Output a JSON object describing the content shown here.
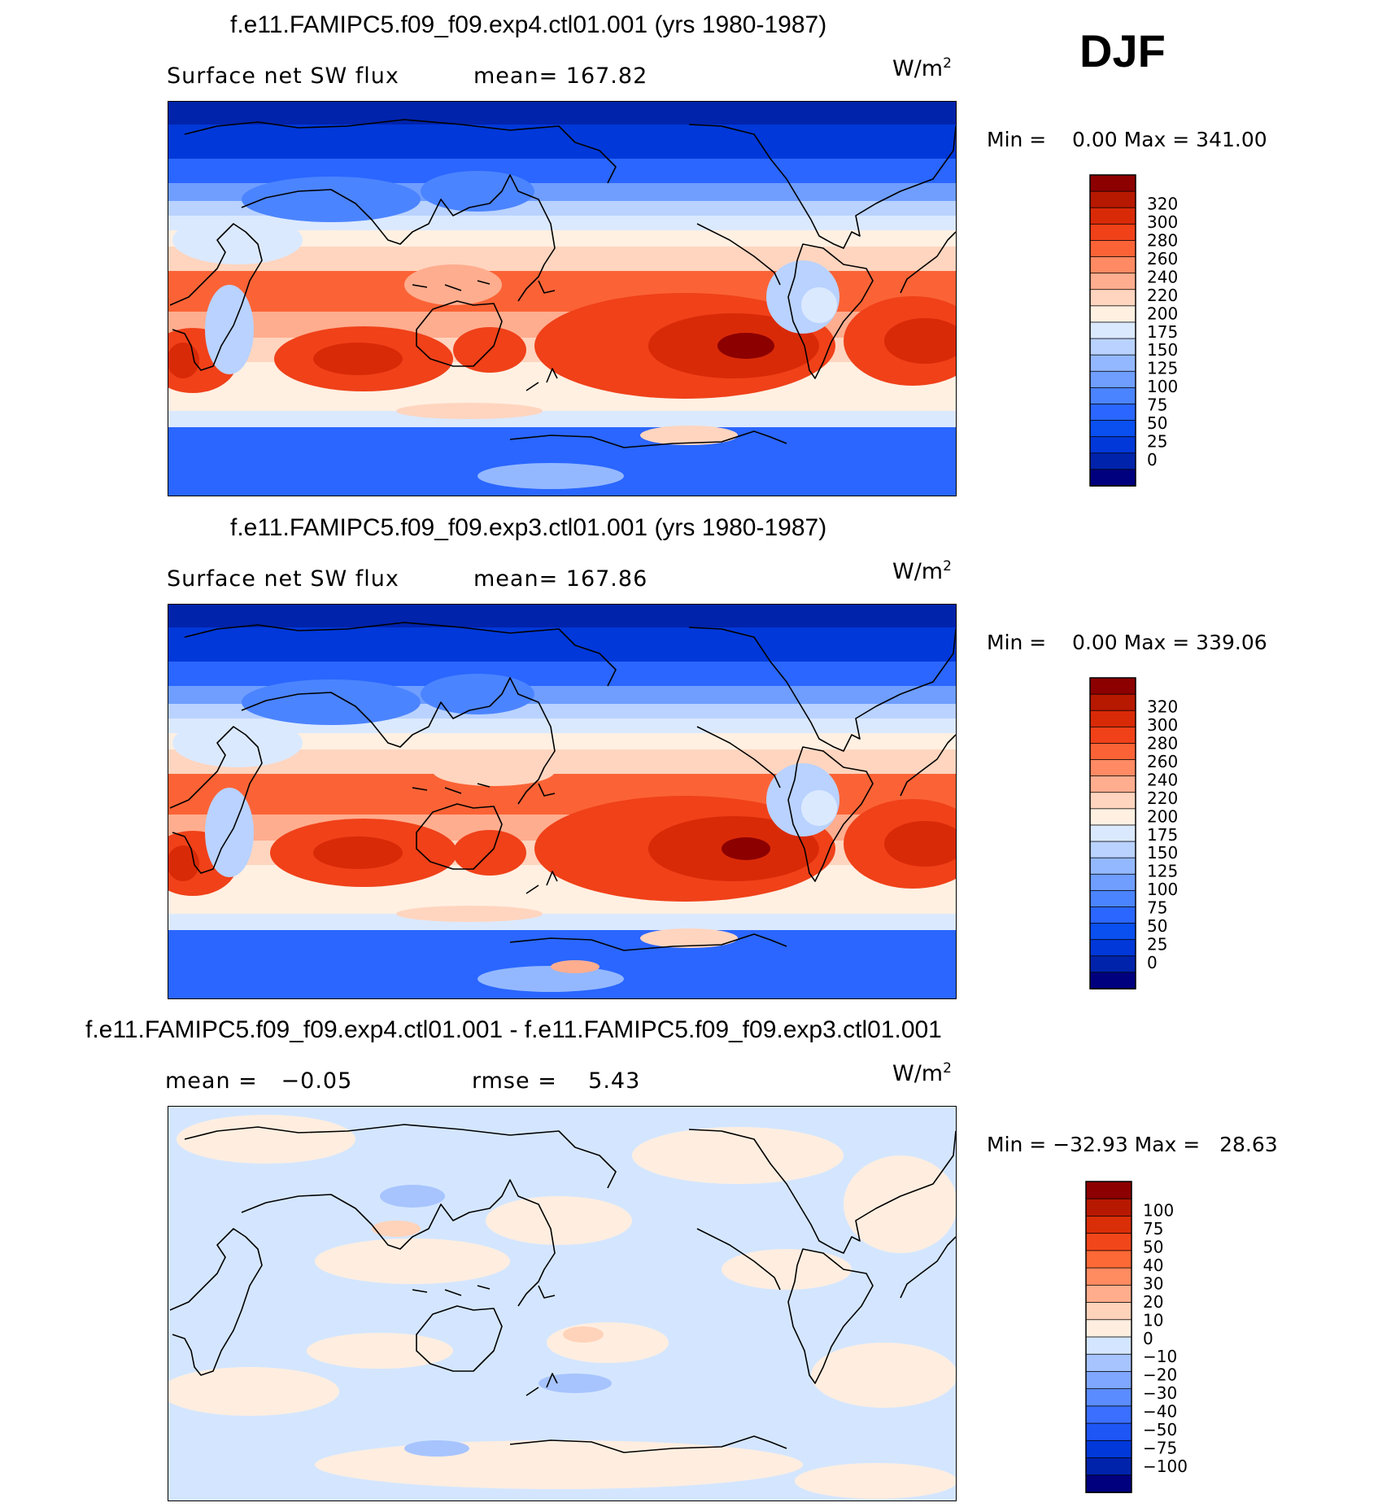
{
  "season": "DJF",
  "colors": {
    "abs_scale": [
      "#00007f",
      "#0023ab",
      "#0038d9",
      "#0a4ff0",
      "#2a66ff",
      "#4b84ff",
      "#6f9eff",
      "#94b8ff",
      "#b9d2ff",
      "#dbe9ff",
      "#fff0e2",
      "#ffd5bf",
      "#ffad8f",
      "#ff8a63",
      "#fb6336",
      "#f04119",
      "#d92a08",
      "#b71800",
      "#8c0000"
    ],
    "diff_scale": [
      "#00007f",
      "#0023ab",
      "#0038d9",
      "#1e55f5",
      "#3a6fff",
      "#5b8cff",
      "#7fa7ff",
      "#a7c4ff",
      "#d4e6ff",
      "#ffeee0",
      "#ffd3ba",
      "#ffad8c",
      "#ff8b60",
      "#fc6936",
      "#f1461a",
      "#d92e08",
      "#b71800",
      "#8c0000"
    ]
  },
  "chart_data": [
    {
      "type": "heatmap",
      "title": "f.e11.FAMIPC5.f09_f09.exp4.ctl01.001 (yrs 1980-1987)",
      "subtitle": "Surface net SW flux",
      "stat": "mean= 167.82",
      "units": "W/m",
      "units_exp": "2",
      "minmax": "Min =    0.00 Max = 341.00",
      "colorbar_levels": [
        "320",
        "300",
        "280",
        "260",
        "240",
        "220",
        "200",
        "175",
        "150",
        "125",
        "100",
        "75",
        "50",
        "25",
        "0"
      ]
    },
    {
      "type": "heatmap",
      "title": "f.e11.FAMIPC5.f09_f09.exp3.ctl01.001 (yrs 1980-1987)",
      "subtitle": "Surface net SW flux",
      "stat": "mean= 167.86",
      "units": "W/m",
      "units_exp": "2",
      "minmax": "Min =    0.00 Max = 339.06",
      "colorbar_levels": [
        "320",
        "300",
        "280",
        "260",
        "240",
        "220",
        "200",
        "175",
        "150",
        "125",
        "100",
        "75",
        "50",
        "25",
        "0"
      ]
    },
    {
      "type": "heatmap",
      "title": "f.e11.FAMIPC5.f09_f09.exp4.ctl01.001 - f.e11.FAMIPC5.f09_f09.exp3.ctl01.001",
      "stat_mean": "mean =   −0.05",
      "stat_rmse": "rmse =    5.43",
      "units": "W/m",
      "units_exp": "2",
      "minmax": "Min = −32.93 Max =   28.63",
      "colorbar_levels": [
        "100",
        "75",
        "50",
        "40",
        "30",
        "20",
        "10",
        "0",
        "−10",
        "−20",
        "−30",
        "−40",
        "−50",
        "−75",
        "−100"
      ]
    }
  ]
}
